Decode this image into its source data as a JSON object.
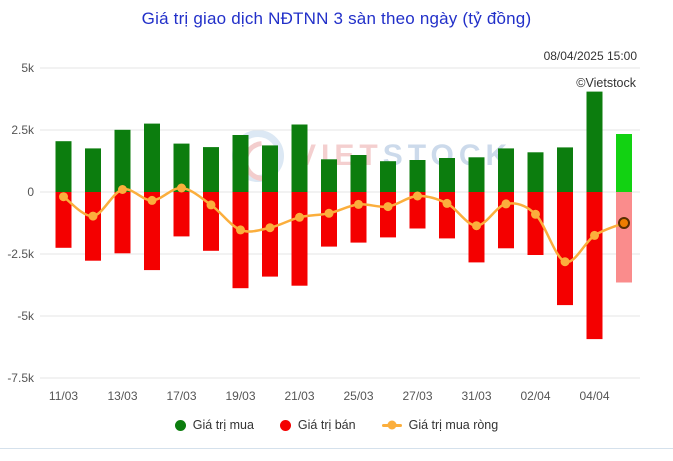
{
  "header": {
    "title": "Giá trị giao dịch NĐTNN 3 sàn theo ngày (tỷ đồng)",
    "timestamp": "08/04/2025 15:00",
    "credit": "©Vietstock"
  },
  "watermark": {
    "text_red": "VIET",
    "text_blue": "STOCK"
  },
  "legend": {
    "items": [
      {
        "label": "Giá trị mua",
        "color": "#0c7d0e",
        "marker": "circle"
      },
      {
        "label": "Giá trị bán",
        "color": "#f40000",
        "marker": "circle"
      },
      {
        "label": "Giá trị mua ròng",
        "color": "#fbae3c",
        "marker": "line-dot"
      }
    ]
  },
  "chart_data": {
    "type": "bar",
    "title": "Giá trị giao dịch NĐTNN 3 sàn theo ngày (tỷ đồng)",
    "xlabel": "",
    "ylabel": "tỷ đồng",
    "ylim": [
      -7500,
      5000
    ],
    "grid": true,
    "legend_position": "bottom",
    "y_ticks": [
      {
        "label": "5k",
        "value": 5000
      },
      {
        "label": "2.5k",
        "value": 2500
      },
      {
        "label": "0",
        "value": 0
      },
      {
        "label": "-2.5k",
        "value": -2500
      },
      {
        "label": "-5k",
        "value": -5000
      },
      {
        "label": "-7.5k",
        "value": -7500
      }
    ],
    "x_tick_labels": [
      "11/03",
      "13/03",
      "17/03",
      "19/03",
      "21/03",
      "25/03",
      "27/03",
      "31/03",
      "02/04",
      "04/04"
    ],
    "x_tick_bar_indexes": [
      0,
      2,
      4,
      6,
      8,
      10,
      12,
      14,
      16,
      18
    ],
    "series": [
      {
        "name": "Giá trị mua",
        "type": "bar",
        "color": "#0c7d0e",
        "highlight_color": "#12d212",
        "values": [
          2050,
          1760,
          2510,
          2760,
          1950,
          1810,
          2300,
          1880,
          2720,
          1320,
          1490,
          1240,
          1290,
          1370,
          1400,
          1760,
          1600,
          1800,
          4050,
          2340
        ]
      },
      {
        "name": "Giá trị bán",
        "type": "bar",
        "color": "#f40000",
        "highlight_color": "#fa8c8c",
        "values": [
          -2250,
          -2770,
          -2470,
          -3150,
          -1790,
          -2370,
          -3880,
          -3410,
          -3780,
          -2200,
          -2040,
          -1830,
          -1470,
          -1870,
          -2840,
          -2270,
          -2540,
          -4560,
          -5930,
          -3650
        ]
      },
      {
        "name": "Giá trị mua ròng",
        "type": "line",
        "color": "#fbae3c",
        "point_color": "#fbae3c",
        "last_point_fill": "#ee7d00",
        "last_point_ring": "#5a2d00",
        "values": [
          -190,
          -970,
          100,
          -340,
          160,
          -520,
          -1530,
          -1440,
          -1020,
          -860,
          -500,
          -590,
          -160,
          -460,
          -1360,
          -480,
          -900,
          -2810,
          -1750,
          -1250
        ]
      }
    ],
    "highlight_last_bar": true,
    "colors": {
      "grid": "#e6e6e6",
      "axis_label": "#555555",
      "title": "#2230c9"
    }
  }
}
